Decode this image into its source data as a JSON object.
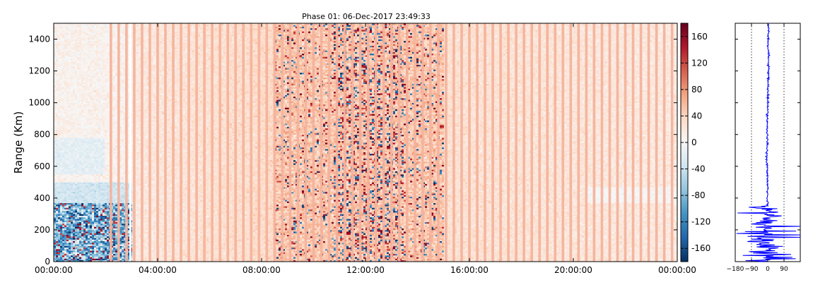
{
  "chart_data": [
    {
      "type": "heatmap",
      "title": "Phase 01: 06-Dec-2017 23:49:33",
      "ylabel": "Range (Km)",
      "xlabel": "",
      "x_ticks": [
        "00:00:00",
        "04:00:00",
        "08:00:00",
        "12:00:00",
        "16:00:00",
        "20:00:00",
        "00:00:00"
      ],
      "x_range_hours": [
        0,
        24
      ],
      "y_ticks": [
        0,
        200,
        400,
        600,
        800,
        1000,
        1200,
        1400
      ],
      "ylim": [
        0,
        1500
      ],
      "grid": false,
      "colormap": "RdBu_r",
      "colorbar": {
        "ticks": [
          -160,
          -120,
          -80,
          -40,
          0,
          40,
          80,
          120,
          160
        ],
        "range": [
          -180,
          180
        ],
        "colors": [
          "#053061",
          "#2166ac",
          "#4393c3",
          "#92c5de",
          "#d1e5f0",
          "#f7f7f7",
          "#fddbc7",
          "#f4a582",
          "#d6604d",
          "#b2182b",
          "#67001f"
        ]
      },
      "features": {
        "gap_stripe_start_hour": 2.2,
        "gap_stripe_spacing_hours": 0.3,
        "noisy_band_hours": [
          8.5,
          15.0
        ],
        "strong_noise_hours": [
          10.8,
          13.5
        ],
        "negative_region_hours": [
          0,
          3.0
        ],
        "negative_region_range_km": [
          0,
          370
        ],
        "bright_gap_hour": 2.95
      }
    },
    {
      "type": "line",
      "xlim": [
        -180,
        180
      ],
      "ylim": [
        0,
        1500
      ],
      "x_ticks": [
        -180,
        -90,
        0,
        90
      ],
      "reference_lines_x": [
        -90,
        90
      ],
      "series_color": "#0000ff",
      "profile": [
        {
          "range": 1500,
          "phase": 3
        },
        {
          "range": 1450,
          "phase": 5
        },
        {
          "range": 1400,
          "phase": 2
        },
        {
          "range": 1300,
          "phase": 4
        },
        {
          "range": 1200,
          "phase": 3
        },
        {
          "range": 1100,
          "phase": 1
        },
        {
          "range": 1000,
          "phase": 0
        },
        {
          "range": 900,
          "phase": -2
        },
        {
          "range": 800,
          "phase": -3
        },
        {
          "range": 700,
          "phase": -4
        },
        {
          "range": 650,
          "phase": -6
        },
        {
          "range": 600,
          "phase": -3
        },
        {
          "range": 500,
          "phase": -2
        },
        {
          "range": 420,
          "phase": -1
        },
        {
          "range": 400,
          "phase": -5
        },
        {
          "range": 370,
          "phase": 0
        }
      ],
      "noisy_range_km": [
        0,
        350
      ]
    }
  ]
}
